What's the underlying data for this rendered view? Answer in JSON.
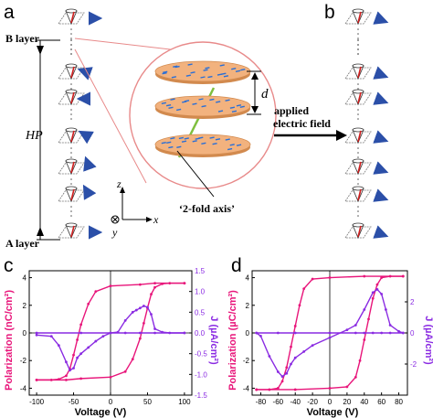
{
  "colors": {
    "pink": "#e8157a",
    "purple": "#8a2be2",
    "arrow": "#2b4fa8",
    "disc": "#f2b27e",
    "discEdge": "#d28a4e",
    "dash": "#2a6fd6",
    "axis2": "#7fbf3f",
    "circle": "#e88a8a"
  },
  "panels": {
    "a": "a",
    "b": "b",
    "c": "c",
    "d": "d"
  },
  "top": {
    "b_layer": "B layer",
    "a_layer": "A layer",
    "hp": "HP",
    "d": "d",
    "applied": "applied",
    "electric_field": "electric field",
    "two_fold_axis": "‘2-fold axis’",
    "z": "z",
    "x": "x",
    "y": "y"
  },
  "chart_data": [
    {
      "type": "line",
      "panel": "c",
      "xlabel": "Voltage (V)",
      "ylabel_left": "Polarization (nC/cm²)",
      "ylabel_right": "J (µA/cm²)",
      "xlim": [
        -110,
        110
      ],
      "ylim_left": [
        -4.5,
        4.5
      ],
      "ylim_right": [
        -1.5,
        1.5
      ],
      "xticks": [
        "-100",
        "-50",
        "0",
        "50",
        "100"
      ],
      "yticks_left": [
        "-4",
        "-2",
        "0",
        "2",
        "4"
      ],
      "yticks_right": [
        "-1.5",
        "-1.0",
        "-0.5",
        "0.0",
        "0.5",
        "1.0",
        "1.5"
      ],
      "series": [
        {
          "axis": "left",
          "color": "pink",
          "x": [
            -100,
            -80,
            -70,
            -60,
            -55,
            -50,
            -45,
            -40,
            -30,
            -20,
            0,
            40,
            60,
            100
          ],
          "y": [
            -3.4,
            -3.4,
            -3.35,
            -3.1,
            -2.6,
            -1.6,
            -0.5,
            0.6,
            2.1,
            3.0,
            3.4,
            3.5,
            3.6,
            3.6
          ]
        },
        {
          "axis": "left",
          "color": "pink",
          "x": [
            100,
            80,
            70,
            60,
            55,
            50,
            45,
            40,
            30,
            20,
            0,
            -40,
            -60,
            -100
          ],
          "y": [
            3.6,
            3.6,
            3.55,
            3.3,
            2.8,
            1.8,
            0.7,
            -0.4,
            -1.9,
            -2.8,
            -3.2,
            -3.3,
            -3.4,
            -3.4
          ]
        },
        {
          "axis": "right",
          "color": "purple",
          "x": [
            -100,
            -80,
            -70,
            -60,
            -55,
            -50,
            -45,
            -40,
            -30,
            -20,
            -10,
            0,
            20,
            40,
            60,
            100
          ],
          "y": [
            -0.05,
            -0.08,
            -0.3,
            -0.7,
            -0.9,
            -0.85,
            -0.6,
            -0.5,
            -0.35,
            -0.2,
            -0.08,
            0.0,
            0.0,
            0.0,
            0.0,
            0.0
          ]
        },
        {
          "axis": "right",
          "color": "purple",
          "x": [
            -100,
            -40,
            0,
            10,
            20,
            30,
            35,
            40,
            45,
            50,
            55,
            60,
            70,
            80,
            100
          ],
          "y": [
            0.0,
            0.0,
            0.0,
            0.02,
            0.3,
            0.5,
            0.55,
            0.6,
            0.65,
            0.62,
            0.45,
            0.1,
            0.02,
            0.0,
            0.0
          ]
        }
      ]
    },
    {
      "type": "line",
      "panel": "d",
      "xlabel": "Voltage (V)",
      "ylabel_left": "Polarization (µC/cm²)",
      "ylabel_right": "J (µA/cm²)",
      "xlim": [
        -90,
        90
      ],
      "ylim_left": [
        -4.5,
        4.5
      ],
      "ylim_right": [
        -4,
        4
      ],
      "xticks": [
        "-80",
        "-60",
        "-40",
        "-20",
        "0",
        "20",
        "40",
        "60",
        "80"
      ],
      "yticks_left": [
        "-4",
        "-2",
        "0",
        "2",
        "4"
      ],
      "yticks_right": [
        "-2",
        "0",
        "2"
      ],
      "series": [
        {
          "axis": "left",
          "color": "pink",
          "x": [
            -85,
            -70,
            -60,
            -55,
            -50,
            -45,
            -40,
            -35,
            -30,
            -20,
            0,
            40,
            85
          ],
          "y": [
            -4.1,
            -4.1,
            -4.0,
            -3.5,
            -2.5,
            -1.0,
            0.5,
            2.0,
            3.2,
            3.9,
            4.0,
            4.1,
            4.1
          ]
        },
        {
          "axis": "left",
          "color": "pink",
          "x": [
            85,
            70,
            60,
            55,
            50,
            45,
            40,
            35,
            30,
            20,
            0,
            -40,
            -85
          ],
          "y": [
            4.1,
            4.1,
            4.0,
            3.5,
            2.5,
            1.0,
            -0.5,
            -2.0,
            -3.2,
            -3.9,
            -4.0,
            -4.1,
            -4.1
          ]
        },
        {
          "axis": "right",
          "color": "purple",
          "x": [
            -85,
            -80,
            -70,
            -60,
            -55,
            -50,
            -45,
            -40,
            -30,
            -20,
            0,
            20,
            30,
            40,
            50,
            55,
            60,
            65,
            70,
            80,
            85
          ],
          "y": [
            0,
            -0.2,
            -1.5,
            -2.5,
            -2.8,
            -2.6,
            -2.0,
            -1.6,
            -1.2,
            -0.8,
            -0.3,
            0.2,
            0.5,
            1.5,
            2.6,
            2.8,
            2.5,
            1.5,
            0.5,
            0.1,
            0
          ]
        },
        {
          "axis": "right",
          "color": "purple",
          "x": [
            -85,
            -60,
            -40,
            0,
            30,
            40,
            50,
            60,
            70,
            85
          ],
          "y": [
            0,
            0,
            0,
            0,
            0,
            0,
            0,
            0,
            0,
            0
          ]
        }
      ]
    }
  ]
}
